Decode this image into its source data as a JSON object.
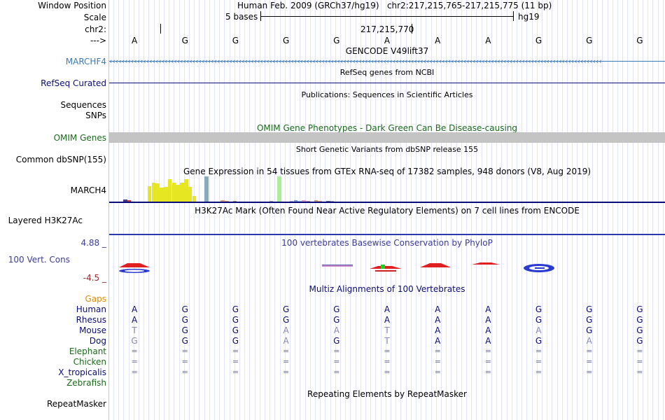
{
  "header": {
    "window_position_label": "Window Position",
    "window_position_value": "Human Feb. 2009 (GRCh37/hg19)   chr2:217,215,765-217,215,775 (11 bp)",
    "scale_label": "Scale",
    "scale_bases": "5 bases",
    "scale_assembly": "hg19",
    "chrom_label": "chr2:",
    "chrom_position": "217,215,770",
    "strand_label": "--->"
  },
  "bases": [
    "A",
    "G",
    "G",
    "G",
    "G",
    "A",
    "A",
    "A",
    "G",
    "G",
    "G"
  ],
  "tracks": {
    "gencode": {
      "title": "GENCODE V49lift37",
      "label": "MARCHF4"
    },
    "refseq": {
      "title": "RefSeq genes from NCBI",
      "label": "RefSeq Curated"
    },
    "publications": {
      "title": "Publications: Sequences in Scientific Articles",
      "label_line1": "Sequences",
      "label_line2": "SNPs"
    },
    "omim": {
      "title": "OMIM Gene Phenotypes - Dark Green Can Be Disease-causing",
      "label": "OMIM Genes"
    },
    "dbsnp": {
      "title": "Short Genetic Variants from dbSNP release 155",
      "label": "Common dbSNP(155)"
    },
    "gtex": {
      "title": "Gene Expression in 54 tissues from GTEx RNA-seq of 17382 samples, 948 donors (V8, Aug 2019)",
      "label": "MARCH4"
    },
    "h3k27ac": {
      "title": "H3K27Ac Mark (Often Found Near Active Regulatory Elements) on 7 cell lines from ENCODE",
      "label": "Layered H3K27Ac"
    },
    "conservation": {
      "title": "100 vertebrates Basewise Conservation by PhyloP",
      "label": "100 Vert. Cons",
      "max_label": "4.88 _",
      "min_label": "-4.5 _"
    },
    "multiz": {
      "title": "Multiz Alignments of 100 Vertebrates",
      "gaps_label": "Gaps"
    },
    "repeatmasker": {
      "title": "Repeating Elements by RepeatMasker",
      "label": "RepeatMasker"
    }
  },
  "alignment": [
    {
      "species": "Human",
      "bases": [
        "A",
        "G",
        "G",
        "G",
        "G",
        "A",
        "A",
        "A",
        "G",
        "G",
        "G"
      ],
      "faded": []
    },
    {
      "species": "Rhesus",
      "bases": [
        "A",
        "G",
        "G",
        "G",
        "G",
        "A",
        "A",
        "A",
        "G",
        "G",
        "G"
      ],
      "faded": []
    },
    {
      "species": "Mouse",
      "bases": [
        "T",
        "G",
        "G",
        "A",
        "A",
        "T",
        "A",
        "A",
        "A",
        "G",
        "G"
      ],
      "faded": [
        0,
        3,
        4,
        5,
        8
      ]
    },
    {
      "species": "Dog",
      "bases": [
        "G",
        "G",
        "G",
        "A",
        "G",
        "T",
        "A",
        "A",
        "G",
        "A",
        "G"
      ],
      "faded": [
        0,
        3,
        5,
        9
      ]
    },
    {
      "species": "Elephant",
      "bases": [
        "=",
        "=",
        "=",
        "=",
        "=",
        "=",
        "=",
        "=",
        "=",
        "=",
        "="
      ],
      "faded": []
    },
    {
      "species": "Chicken",
      "bases": [
        "=",
        "=",
        "=",
        "=",
        "=",
        "=",
        "=",
        "=",
        "=",
        "=",
        "="
      ],
      "faded": []
    },
    {
      "species": "X_tropicalis",
      "bases": [
        "=",
        "=",
        "=",
        "=",
        "=",
        "=",
        "=",
        "=",
        "=",
        "=",
        "="
      ],
      "faded": []
    },
    {
      "species": "Zebrafish",
      "bases": [],
      "faded": []
    }
  ],
  "gtex_bars": [
    {
      "v": 0.08,
      "c": "#4a3a8a"
    },
    {
      "v": 0.05,
      "c": "#cc3333"
    },
    {
      "v": 0.0,
      "c": "#ffffff"
    },
    {
      "v": 0.0,
      "c": "#ffffff"
    },
    {
      "v": 0.0,
      "c": "#ffffff"
    },
    {
      "v": 0.0,
      "c": "#ffffff"
    },
    {
      "v": 0.62,
      "c": "#e6e622"
    },
    {
      "v": 0.74,
      "c": "#e6e622"
    },
    {
      "v": 0.71,
      "c": "#e6e622"
    },
    {
      "v": 0.55,
      "c": "#e6e622"
    },
    {
      "v": 0.58,
      "c": "#e6e622"
    },
    {
      "v": 0.88,
      "c": "#e6e622"
    },
    {
      "v": 0.76,
      "c": "#e6e622"
    },
    {
      "v": 0.68,
      "c": "#e6e622"
    },
    {
      "v": 0.74,
      "c": "#e6e622"
    },
    {
      "v": 0.88,
      "c": "#e6e622"
    },
    {
      "v": 0.57,
      "c": "#e6e622"
    },
    {
      "v": 0.23,
      "c": "#e6e622"
    },
    {
      "v": 0.0,
      "c": "#ffffff"
    },
    {
      "v": 0.0,
      "c": "#ffffff"
    },
    {
      "v": 1.0,
      "c": "#88aabb"
    },
    {
      "v": 0.0,
      "c": "#ffffff"
    },
    {
      "v": 0.0,
      "c": "#ffffff"
    },
    {
      "v": 0.0,
      "c": "#ffffff"
    },
    {
      "v": 0.05,
      "c": "#dd9977"
    },
    {
      "v": 0.04,
      "c": "#dd9977"
    },
    {
      "v": 0.0,
      "c": "#ffffff"
    },
    {
      "v": 0.03,
      "c": "#aa8866"
    },
    {
      "v": 0.0,
      "c": "#ffffff"
    },
    {
      "v": 0.0,
      "c": "#ffffff"
    },
    {
      "v": 0.0,
      "c": "#ffffff"
    },
    {
      "v": 0.0,
      "c": "#ffffff"
    },
    {
      "v": 0.0,
      "c": "#ffffff"
    },
    {
      "v": 0.0,
      "c": "#ffffff"
    },
    {
      "v": 0.0,
      "c": "#ffffff"
    },
    {
      "v": 0.0,
      "c": "#ffffff"
    },
    {
      "v": 0.03,
      "c": "#99aabb"
    },
    {
      "v": 0.0,
      "c": "#ffffff"
    },
    {
      "v": 1.0,
      "c": "#aaee99"
    },
    {
      "v": 0.0,
      "c": "#ffffff"
    },
    {
      "v": 0.0,
      "c": "#ffffff"
    },
    {
      "v": 0.04,
      "c": "#bbaaee"
    },
    {
      "v": 0.05,
      "c": "#7799dd"
    },
    {
      "v": 0.04,
      "c": "#99bbee"
    },
    {
      "v": 0.05,
      "c": "#dd99cc"
    },
    {
      "v": 0.04,
      "c": "#cc99aa"
    },
    {
      "v": 0.0,
      "c": "#ffffff"
    },
    {
      "v": 0.05,
      "c": "#cc9966"
    },
    {
      "v": 0.04,
      "c": "#ee9988"
    },
    {
      "v": 0.0,
      "c": "#ffffff"
    },
    {
      "v": 0.04,
      "c": "#6666aa"
    },
    {
      "v": 0.03,
      "c": "#aaaaaa"
    },
    {
      "v": 0.0,
      "c": "#ffffff"
    },
    {
      "v": 0.0,
      "c": "#ffffff"
    }
  ],
  "colors": {
    "gencode": "#3a7ab8",
    "refseq": "#0c0c78",
    "omim": "#1a6a1a",
    "conservation": "#3c3c9c",
    "cons_min": "#9c2a2a",
    "gaps": "#e08a00",
    "species": "#0c0c78",
    "species_far": "#1a6a1a",
    "h3k27ac_line": "#2a3aaa"
  }
}
